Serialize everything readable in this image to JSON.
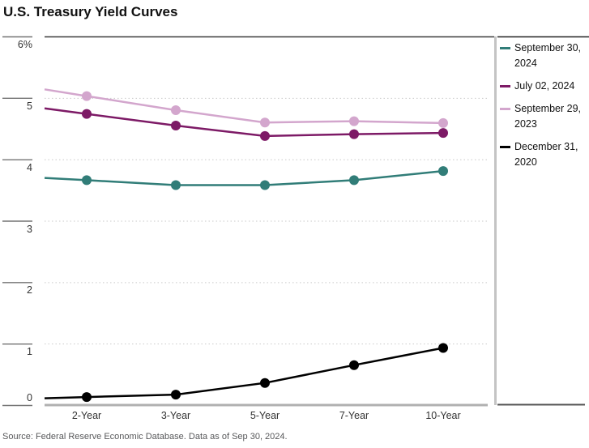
{
  "title": "U.S. Treasury Yield Curves",
  "source": "Source: Federal Reserve Economic Database. Data as of Sep 30, 2024.",
  "colors": {
    "teal": "#317d78",
    "purple": "#7d1a66",
    "pink": "#d3a6cd",
    "black": "#000000",
    "grid_dotted": "#c9c9c9",
    "tick_line": "#737373",
    "top_border": "#3c3c3c",
    "baseline": "#b0b0b0",
    "separator": "#c4c4c4",
    "legend_border_top": "#222222",
    "legend_border_bottom": "#555555",
    "axis_label": "#333333",
    "source_text": "#58595b"
  },
  "chart_data": {
    "type": "line",
    "title": "U.S. Treasury Yield Curves",
    "categories": [
      "2-Year",
      "3-Year",
      "5-Year",
      "7-Year",
      "10-Year"
    ],
    "series": [
      {
        "name": "September 30, 2024",
        "color": "#317d78",
        "values": [
          3.66,
          3.58,
          3.58,
          3.66,
          3.81
        ]
      },
      {
        "name": "July 02, 2024",
        "color": "#7d1a66",
        "values": [
          4.74,
          4.55,
          4.38,
          4.41,
          4.43
        ]
      },
      {
        "name": "September 29, 2023",
        "color": "#d3a6cd",
        "values": [
          5.03,
          4.8,
          4.6,
          4.62,
          4.59
        ]
      },
      {
        "name": "December 31, 2020",
        "color": "#000000",
        "values": [
          0.13,
          0.17,
          0.36,
          0.65,
          0.93
        ]
      }
    ],
    "z_order": [
      2,
      1,
      0,
      3
    ],
    "xlabel": "",
    "ylabel": "",
    "ylim": [
      0,
      6
    ],
    "yticks": [
      0,
      1,
      2,
      3,
      4,
      5,
      6
    ],
    "ytick_labels": [
      "0",
      "1",
      "2",
      "3",
      "4",
      "5",
      "6%"
    ],
    "grid": "horizontal-dotted",
    "legend_position": "right",
    "marker": "filled-circle"
  }
}
